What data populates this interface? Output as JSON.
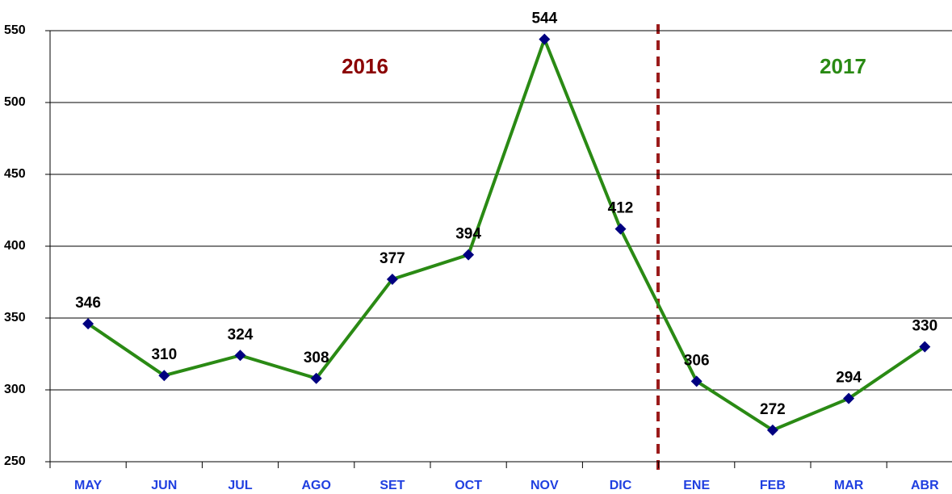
{
  "chart_data": {
    "type": "line",
    "categories": [
      "MAY",
      "JUN",
      "JUL",
      "AGO",
      "SET",
      "OCT",
      "NOV",
      "DIC",
      "ENE",
      "FEB",
      "MAR",
      "ABR"
    ],
    "values": [
      346,
      310,
      324,
      308,
      377,
      394,
      544,
      412,
      306,
      272,
      294,
      330
    ],
    "color": "#2a8a14",
    "marker_color": "#000080",
    "ylim": [
      250,
      550
    ],
    "yticks": [
      250,
      300,
      350,
      400,
      450,
      500,
      550
    ],
    "grid": true,
    "annotations": [
      {
        "text": "2016",
        "color": "#8b0000"
      },
      {
        "text": "2017",
        "color": "#2a8a14"
      }
    ]
  }
}
